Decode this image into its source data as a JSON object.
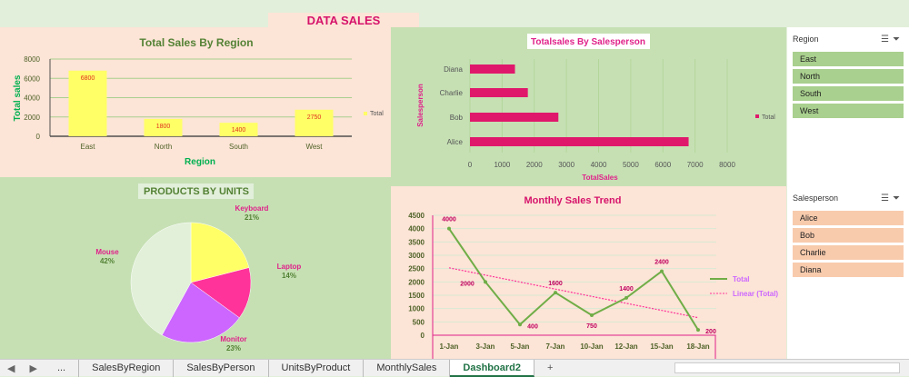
{
  "dashboard_title": "DATA SALES DASHBOARD",
  "colors": {
    "peach": "#fce4d6",
    "green": "#c6e0b4",
    "magenta": "#d6136b",
    "yellow": "#ffff66",
    "line": "#70ad47"
  },
  "chart_data": [
    {
      "type": "bar",
      "title": "Total Sales By Region",
      "xlabel": "Region",
      "ylabel": "Total sales",
      "categories": [
        "East",
        "North",
        "South",
        "West"
      ],
      "values": [
        6800,
        1800,
        1400,
        2750
      ],
      "ylim": [
        0,
        8000
      ],
      "yticks": [
        "0",
        "2000",
        "4000",
        "6000",
        "8000"
      ],
      "legend": "Total",
      "legend_position": "right",
      "grid": true
    },
    {
      "type": "bar",
      "orientation": "horizontal",
      "title": "Totalsales By Salesperson",
      "xlabel": "TotalSales",
      "ylabel": "Salesperson",
      "categories": [
        "Alice",
        "Bob",
        "Charlie",
        "Diana"
      ],
      "values": [
        6800,
        2750,
        1800,
        1400
      ],
      "xlim": [
        0,
        8000
      ],
      "xticks": [
        "0",
        "1000",
        "2000",
        "3000",
        "4000",
        "5000",
        "6000",
        "7000",
        "8000"
      ],
      "legend": "Total",
      "legend_position": "right"
    },
    {
      "type": "pie",
      "title": "PRODUCTS BY UNITS",
      "labels": [
        "Keyboard",
        "Laptop",
        "Monitor",
        "Mouse"
      ],
      "values": [
        21,
        14,
        23,
        42
      ],
      "value_labels": [
        "21%",
        "14%",
        "23%",
        "42%"
      ],
      "colors": [
        "#ffff66",
        "#ff3399",
        "#cc66ff",
        "#e2f0d9"
      ]
    },
    {
      "type": "line",
      "title": "Monthly Sales Trend",
      "categories": [
        "1-Jan",
        "3-Jan",
        "5-Jan",
        "7-Jan",
        "10-Jan",
        "12-Jan",
        "15-Jan",
        "18-Jan"
      ],
      "values": [
        4000,
        2000,
        400,
        1600,
        750,
        1400,
        2400,
        200
      ],
      "ylim": [
        0,
        4500
      ],
      "yticks": [
        "0",
        "500",
        "1000",
        "1500",
        "2000",
        "2500",
        "3000",
        "3500",
        "4000",
        "4500"
      ],
      "series": [
        {
          "name": "Total"
        },
        {
          "name": "Linear (Total)"
        }
      ],
      "legend_position": "right",
      "grid": true
    }
  ],
  "slicers": {
    "region": {
      "title": "Region",
      "items": [
        "East",
        "North",
        "South",
        "West"
      ]
    },
    "salesperson": {
      "title": "Salesperson",
      "items": [
        "Alice",
        "Bob",
        "Charlie",
        "Diana"
      ]
    }
  },
  "tabs": {
    "more": "...",
    "items": [
      "SalesByRegion",
      "SalesByPerson",
      "UnitsByProduct",
      "MonthlySales",
      "Dashboard2"
    ],
    "active": "Dashboard2",
    "add": "+"
  }
}
